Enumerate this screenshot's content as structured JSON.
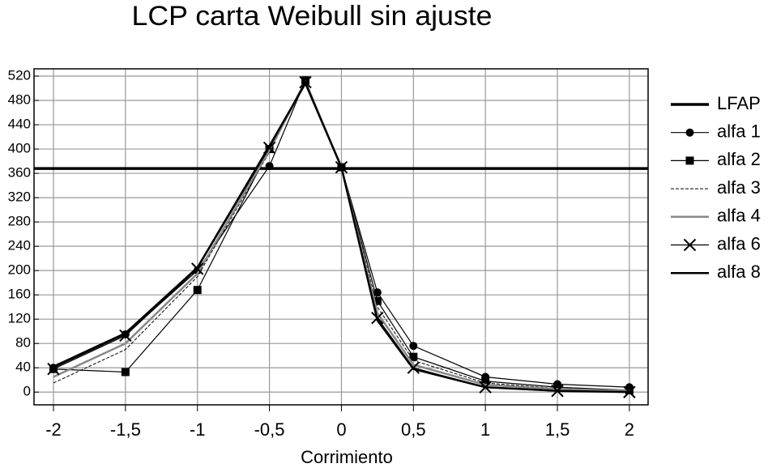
{
  "chart_data": {
    "type": "line",
    "title": "LCP carta Weibull sin ajuste",
    "x_label": "Corrimiento",
    "x": [
      -2,
      -1.5,
      -1,
      -0.5,
      -0.25,
      0,
      0.25,
      0.5,
      1,
      1.5,
      2
    ],
    "xlim": [
      -2.135,
      2.13
    ],
    "xticks": [
      -2,
      {
        "value": -1.5,
        "label": "-1,5"
      },
      -1,
      {
        "value": -0.5,
        "label": "-0,5"
      },
      0,
      {
        "value": 0.5,
        "label": "0,5"
      },
      1,
      {
        "value": 1.5,
        "label": "1,5"
      },
      2
    ],
    "ylim": [
      -21,
      532
    ],
    "yticks": [
      0,
      40,
      80,
      120,
      160,
      200,
      240,
      280,
      320,
      360,
      400,
      440,
      480,
      520
    ],
    "grid": true,
    "legend": "right",
    "reference_line": {
      "name": "LFAP",
      "value": 368,
      "color": "#000000"
    },
    "series": [
      {
        "name": "alfa 1",
        "color": "#000000",
        "marker": "circle",
        "values": [
          40,
          95,
          200,
          372,
          513,
          370,
          164,
          76,
          25,
          13,
          8
        ]
      },
      {
        "name": "alfa 2",
        "color": "#000000",
        "marker": "square",
        "values": [
          38,
          33,
          168,
          400,
          513,
          370,
          150,
          58,
          18,
          8,
          3
        ]
      },
      {
        "name": "alfa 3",
        "color": "#000000",
        "dash": true,
        "values": [
          15,
          70,
          190,
          395,
          510,
          370,
          140,
          52,
          15,
          6,
          3
        ]
      },
      {
        "name": "alfa 4",
        "color": "#888888",
        "values": [
          25,
          80,
          195,
          398,
          510,
          370,
          130,
          45,
          12,
          5,
          2
        ]
      },
      {
        "name": "alfa 6",
        "color": "#000000",
        "marker": "x",
        "values": [
          38,
          93,
          203,
          402,
          510,
          370,
          122,
          40,
          8,
          2,
          0
        ]
      },
      {
        "name": "alfa 8",
        "color": "#000000",
        "values": [
          42,
          97,
          205,
          405,
          508,
          370,
          118,
          38,
          8,
          2,
          0
        ]
      }
    ]
  }
}
